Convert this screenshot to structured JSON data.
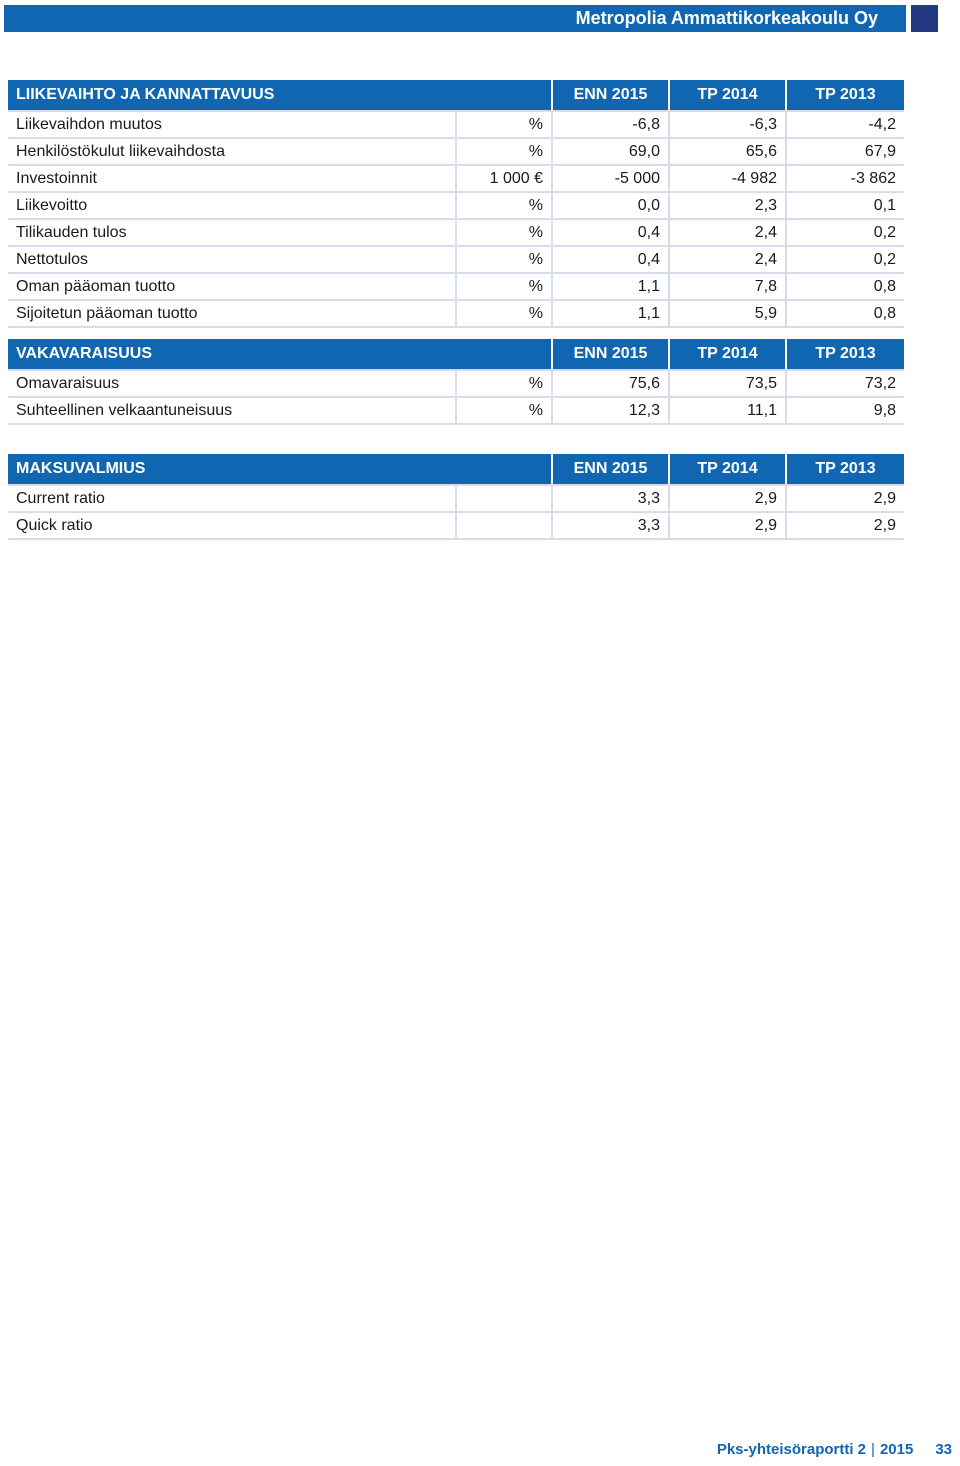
{
  "header": {
    "title": "Metropolia Ammattikorkeakoulu Oy",
    "accent_color": "#1066b0",
    "square_color": "#233a82"
  },
  "tables": [
    {
      "title": "LIIKEVAIHTO JA KANNATTAVUUS",
      "columns": [
        "ENN 2015",
        "TP 2014",
        "TP 2013"
      ],
      "rows": [
        {
          "label": "Liikevaihdon muutos",
          "unit": "%",
          "values": [
            "-6,8",
            "-6,3",
            "-4,2"
          ]
        },
        {
          "label": "Henkilöstökulut liikevaihdosta",
          "unit": "%",
          "values": [
            "69,0",
            "65,6",
            "67,9"
          ]
        },
        {
          "label": "Investoinnit",
          "unit": "1 000 €",
          "values": [
            "-5 000",
            "-4 982",
            "-3 862"
          ]
        },
        {
          "label": "Liikevoitto",
          "unit": "%",
          "values": [
            "0,0",
            "2,3",
            "0,1"
          ]
        },
        {
          "label": "Tilikauden tulos",
          "unit": "%",
          "values": [
            "0,4",
            "2,4",
            "0,2"
          ]
        },
        {
          "label": "Nettotulos",
          "unit": "%",
          "values": [
            "0,4",
            "2,4",
            "0,2"
          ]
        },
        {
          "label": "Oman pääoman tuotto",
          "unit": "%",
          "values": [
            "1,1",
            "7,8",
            "0,8"
          ]
        },
        {
          "label": "Sijoitetun pääoman tuotto",
          "unit": "%",
          "values": [
            "1,1",
            "5,9",
            "0,8"
          ]
        }
      ]
    },
    {
      "title": "VAKAVARAISUUS",
      "columns": [
        "ENN 2015",
        "TP 2014",
        "TP 2013"
      ],
      "rows": [
        {
          "label": "Omavaraisuus",
          "unit": "%",
          "values": [
            "75,6",
            "73,5",
            "73,2"
          ]
        },
        {
          "label": "Suhteellinen velkaantuneisuus",
          "unit": "%",
          "values": [
            "12,3",
            "11,1",
            "9,8"
          ]
        }
      ]
    },
    {
      "title": "MAKSUVALMIUS",
      "columns": [
        "ENN 2015",
        "TP 2014",
        "TP 2013"
      ],
      "rows": [
        {
          "label": "Current ratio",
          "unit": "",
          "values": [
            "3,3",
            "2,9",
            "2,9"
          ]
        },
        {
          "label": "Quick ratio",
          "unit": "",
          "values": [
            "3,3",
            "2,9",
            "2,9"
          ]
        }
      ]
    }
  ],
  "footer": {
    "report": "Pks-yhteisöraportti 2",
    "separator": "|",
    "year": "2015",
    "page": "33"
  }
}
